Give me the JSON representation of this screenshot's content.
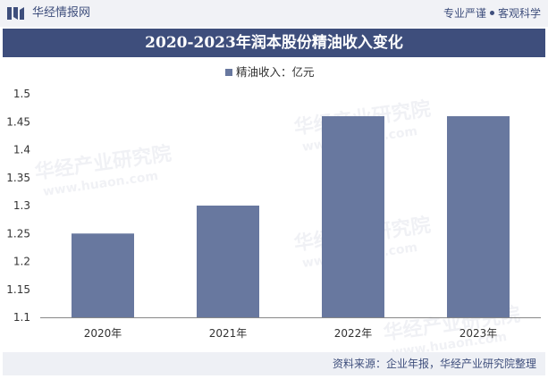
{
  "header": {
    "brand_name": "华经情报网",
    "brand_tag_left": "专业严谨",
    "brand_tag_right": "客观科学",
    "accent_color": "#3e4e7c",
    "logo_icon": "brand-logo-icon"
  },
  "watermark": {
    "text": "华经产业研究院",
    "url": "www.huaon.com"
  },
  "chart_data": {
    "type": "bar",
    "title": "2020-2023年润本股份精油收入变化",
    "categories": [
      "2020年",
      "2021年",
      "2022年",
      "2023年"
    ],
    "series": [
      {
        "name": "精油收入：亿元",
        "values": [
          1.25,
          1.3,
          1.46,
          1.46
        ],
        "color": "#68789f"
      }
    ],
    "ylim": [
      1.1,
      1.5
    ],
    "yticks": [
      "1.1",
      "1.15",
      "1.2",
      "1.25",
      "1.3",
      "1.35",
      "1.4",
      "1.45",
      "1.5"
    ],
    "xlabel": "",
    "ylabel": "",
    "grid": false,
    "legend_position": "top-center"
  },
  "footer": {
    "source": "资料来源：企业年报，华经产业研究院整理"
  }
}
